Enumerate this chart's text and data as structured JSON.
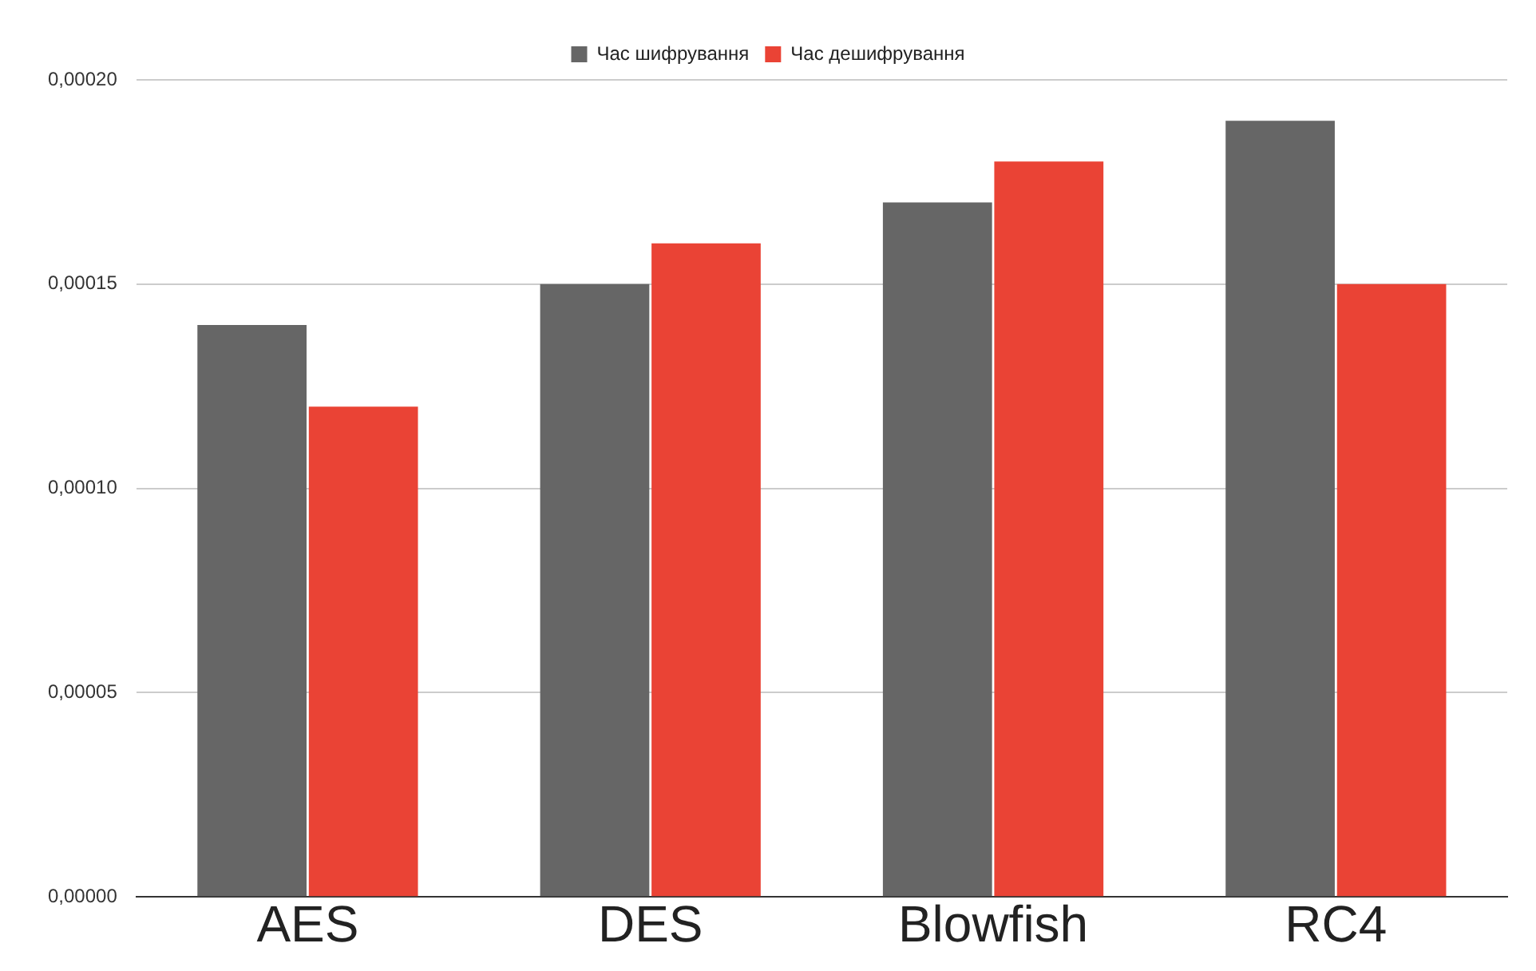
{
  "chart_data": {
    "type": "bar",
    "categories": [
      "AES",
      "DES",
      "Blowfish",
      "RC4"
    ],
    "series": [
      {
        "name": "Час шифрування",
        "color": "#666666",
        "values": [
          0.00014,
          0.00015,
          0.00017,
          0.00019
        ]
      },
      {
        "name": "Час дешифрування",
        "color": "#ea4335",
        "values": [
          0.00012,
          0.00016,
          0.00018,
          0.00015
        ]
      }
    ],
    "ylim": [
      0,
      0.0002
    ],
    "yticks": [
      {
        "value": 0,
        "label": "0,00000"
      },
      {
        "value": 5e-05,
        "label": "0,00005"
      },
      {
        "value": 0.0001,
        "label": "0,00010"
      },
      {
        "value": 0.00015,
        "label": "0,00015"
      },
      {
        "value": 0.0002,
        "label": "0,00020"
      }
    ],
    "grid": "y",
    "legend": "top"
  }
}
